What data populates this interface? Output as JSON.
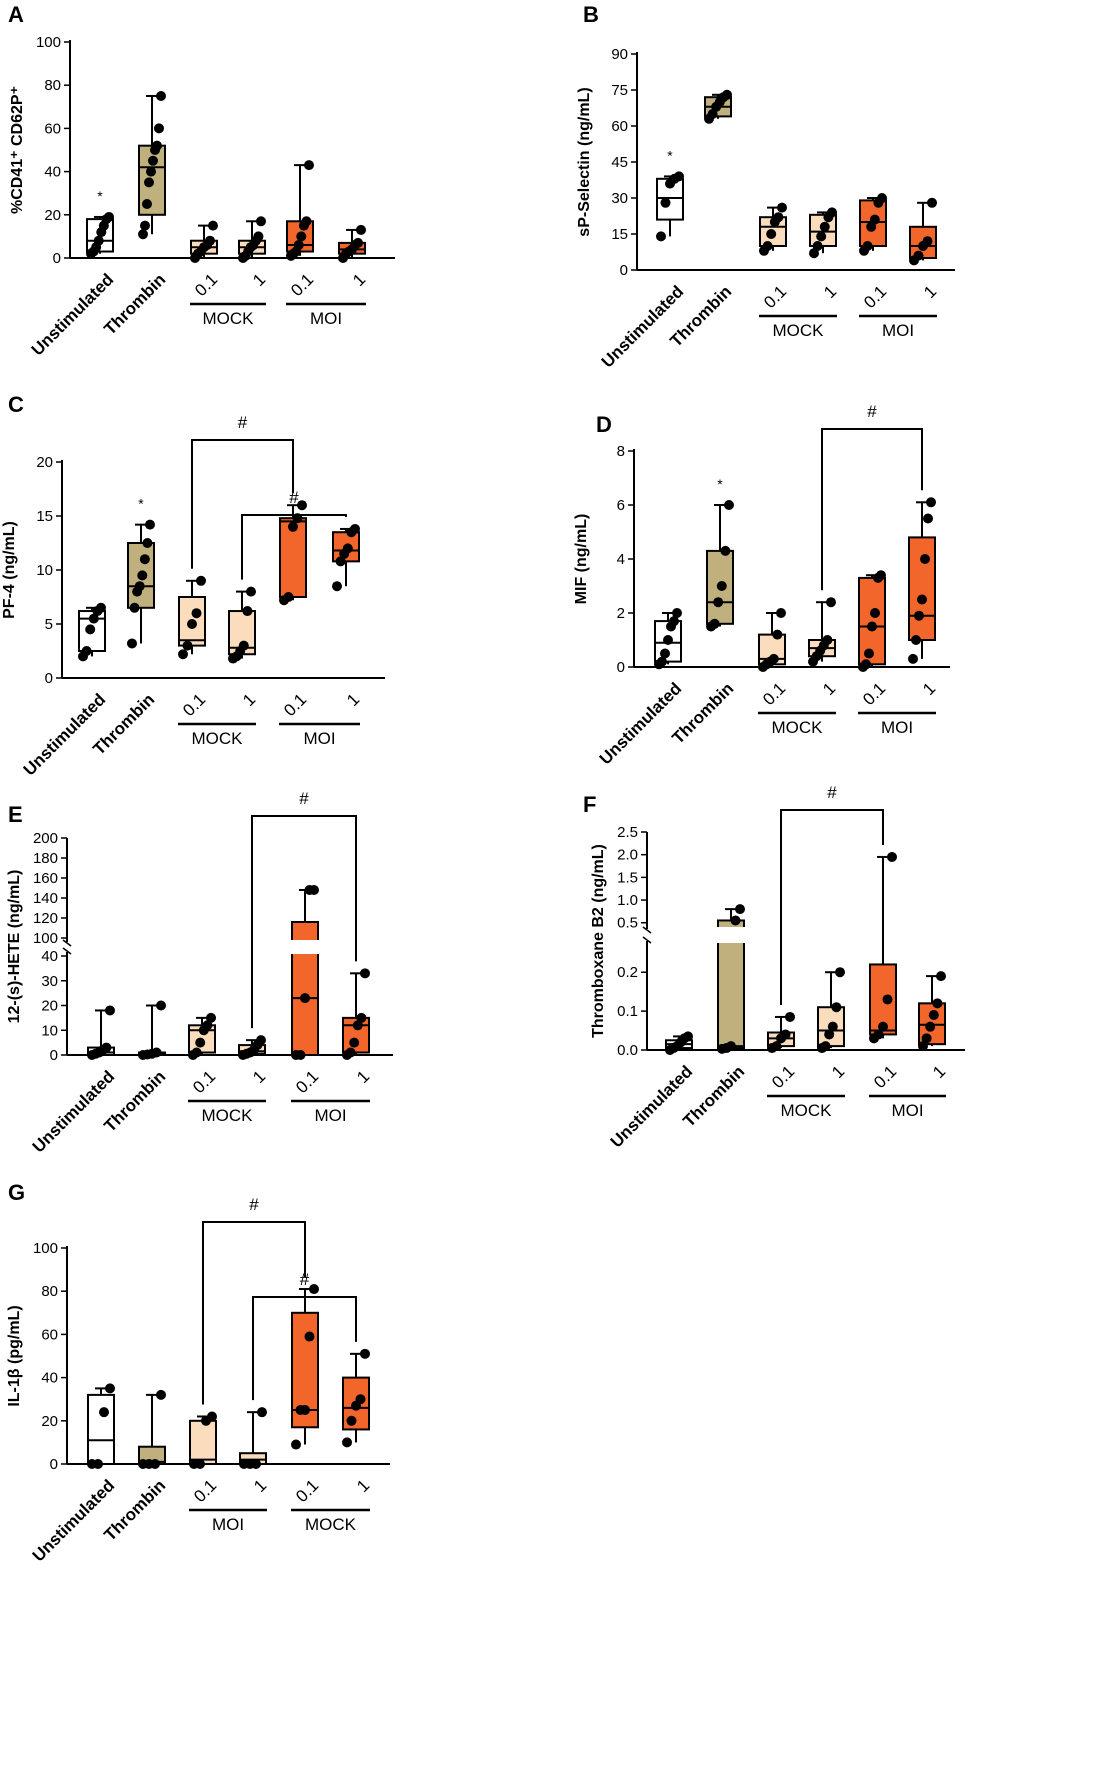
{
  "colors": {
    "unstim": "#ffffff",
    "thrombin": "#bfb07e",
    "mock": "#fbdcbc",
    "moi": "#f2652b"
  },
  "chart_data": [
    {
      "panel": "A",
      "type": "box",
      "ylabel": "%CD41⁺ CD62P⁺",
      "ylim": [
        0,
        100
      ],
      "yticks": [
        "0",
        "20",
        "40",
        "60",
        "80",
        "100"
      ],
      "categories": [
        "Unstimulated",
        "Thrombin",
        "0.1",
        "1",
        "0.1",
        "1"
      ],
      "groups": [
        "MOCK",
        "MOI"
      ],
      "boxes": [
        {
          "min": 2,
          "q1": 3,
          "med": 8,
          "q3": 18,
          "max": 19,
          "points": [
            2,
            3,
            5,
            8,
            12,
            15,
            18,
            19
          ]
        },
        {
          "min": 11,
          "q1": 20,
          "med": 42,
          "q3": 52,
          "max": 75,
          "points": [
            11,
            15,
            25,
            35,
            40,
            45,
            50,
            52,
            60,
            75
          ]
        },
        {
          "min": 0,
          "q1": 2,
          "med": 5,
          "q3": 8,
          "max": 15,
          "points": [
            0,
            2,
            3,
            5,
            6,
            8,
            15
          ]
        },
        {
          "min": 0,
          "q1": 2,
          "med": 5,
          "q3": 8,
          "max": 17,
          "points": [
            0,
            1,
            3,
            5,
            6,
            8,
            10,
            17
          ]
        },
        {
          "min": 1,
          "q1": 3,
          "med": 6,
          "q3": 17,
          "max": 43,
          "points": [
            1,
            2,
            3,
            6,
            10,
            15,
            17,
            43
          ]
        },
        {
          "min": 0,
          "q1": 2,
          "med": 4,
          "q3": 7,
          "max": 13,
          "points": [
            0,
            2,
            3,
            4,
            6,
            7,
            13
          ]
        }
      ],
      "annotations": [
        "*",
        "",
        "",
        "",
        "",
        ""
      ]
    },
    {
      "panel": "B",
      "type": "box",
      "ylabel": "sP-Selectin (ng/mL)",
      "ylim": [
        0,
        90
      ],
      "yticks": [
        "0",
        "15",
        "30",
        "45",
        "60",
        "75",
        "90"
      ],
      "categories": [
        "Unstimulated",
        "Thrombin",
        "0.1",
        "1",
        "0.1",
        "1"
      ],
      "groups": [
        "MOCK",
        "MOI"
      ],
      "boxes": [
        {
          "min": 14,
          "q1": 21,
          "med": 30,
          "q3": 38,
          "max": 39,
          "points": [
            14,
            28,
            36,
            38,
            39
          ]
        },
        {
          "min": 63,
          "q1": 64,
          "med": 68,
          "q3": 72,
          "max": 73,
          "points": [
            63,
            65,
            68,
            70,
            72,
            73
          ]
        },
        {
          "min": 8,
          "q1": 10,
          "med": 18,
          "q3": 22,
          "max": 26,
          "points": [
            8,
            10,
            15,
            20,
            22,
            26
          ]
        },
        {
          "min": 7,
          "q1": 10,
          "med": 16,
          "q3": 23,
          "max": 24,
          "points": [
            7,
            10,
            14,
            18,
            22,
            24
          ]
        },
        {
          "min": 8,
          "q1": 10,
          "med": 20,
          "q3": 29,
          "max": 30,
          "points": [
            8,
            10,
            18,
            21,
            28,
            30
          ]
        },
        {
          "min": 4,
          "q1": 5,
          "med": 10,
          "q3": 18,
          "max": 28,
          "points": [
            4,
            6,
            10,
            12,
            28
          ]
        }
      ],
      "annotations": [
        "*",
        "",
        "",
        "",
        "",
        ""
      ]
    },
    {
      "panel": "C",
      "type": "box",
      "ylabel": "PF-4 (ng/mL)",
      "ylim": [
        0,
        20
      ],
      "yticks": [
        "0",
        "5",
        "10",
        "15",
        "20"
      ],
      "categories": [
        "Unstimulated",
        "Thrombin",
        "0.1",
        "1",
        "0.1",
        "1"
      ],
      "groups": [
        "MOCK",
        "MOI"
      ],
      "boxes": [
        {
          "min": 2,
          "q1": 2.5,
          "med": 5.5,
          "q3": 6.2,
          "max": 6.5,
          "points": [
            2,
            2.5,
            4.5,
            5.5,
            6.2,
            6.5
          ]
        },
        {
          "min": 3.2,
          "q1": 6.5,
          "med": 8.5,
          "q3": 12.5,
          "max": 14.2,
          "points": [
            3.2,
            6.5,
            8,
            8.5,
            9.5,
            11,
            12.5,
            14.2
          ]
        },
        {
          "min": 2.2,
          "q1": 3,
          "med": 3.5,
          "q3": 7.5,
          "max": 9,
          "points": [
            2.2,
            3,
            5,
            6,
            9
          ]
        },
        {
          "min": 1.8,
          "q1": 2.2,
          "med": 2.8,
          "q3": 6.2,
          "max": 8,
          "points": [
            1.8,
            2,
            2.5,
            3,
            6.2,
            8
          ]
        },
        {
          "min": 7.2,
          "q1": 7.5,
          "med": 14.5,
          "q3": 14.8,
          "max": 16,
          "points": [
            7.2,
            7.5,
            14,
            14.8,
            16
          ]
        },
        {
          "min": 8.5,
          "q1": 10.8,
          "med": 11.8,
          "q3": 13.5,
          "max": 13.8,
          "points": [
            8.5,
            10.8,
            11.5,
            12,
            13.5,
            13.8
          ]
        }
      ],
      "annotations": [
        "",
        "*",
        "",
        "",
        "",
        ""
      ],
      "brackets": [
        {
          "from": 2,
          "to": 4,
          "label": "#",
          "level": 0
        },
        {
          "from": 3,
          "to": 5,
          "label": "#",
          "level": 1
        }
      ]
    },
    {
      "panel": "D",
      "type": "box",
      "ylabel": "MIF (ng/mL)",
      "ylim": [
        0,
        8
      ],
      "yticks": [
        "0",
        "2",
        "4",
        "6",
        "8"
      ],
      "categories": [
        "Unstimulated",
        "Thrombin",
        "0.1",
        "1",
        "0.1",
        "1"
      ],
      "groups": [
        "MOCK",
        "MOI"
      ],
      "boxes": [
        {
          "min": 0.1,
          "q1": 0.2,
          "med": 0.9,
          "q3": 1.7,
          "max": 2,
          "points": [
            0.1,
            0.2,
            0.5,
            1,
            1.5,
            1.7,
            2
          ]
        },
        {
          "min": 1.5,
          "q1": 1.6,
          "med": 2.4,
          "q3": 4.3,
          "max": 6,
          "points": [
            1.5,
            1.6,
            2.4,
            3,
            4.3,
            6
          ]
        },
        {
          "min": 0,
          "q1": 0.1,
          "med": 0.3,
          "q3": 1.2,
          "max": 2,
          "points": [
            0,
            0.1,
            0.2,
            0.3,
            1.2,
            2
          ]
        },
        {
          "min": 0.2,
          "q1": 0.4,
          "med": 0.7,
          "q3": 1,
          "max": 2.4,
          "points": [
            0.2,
            0.4,
            0.6,
            0.8,
            1,
            2.4
          ]
        },
        {
          "min": 0,
          "q1": 0.1,
          "med": 1.5,
          "q3": 3.3,
          "max": 3.4,
          "points": [
            0,
            0.1,
            0.5,
            1.5,
            2,
            3.3,
            3.4
          ]
        },
        {
          "min": 0.3,
          "q1": 1,
          "med": 1.9,
          "q3": 4.8,
          "max": 6.1,
          "points": [
            0.3,
            1,
            1.9,
            2.5,
            4,
            5.5,
            6.1
          ]
        }
      ],
      "annotations": [
        "",
        "*",
        "",
        "",
        "",
        ""
      ],
      "brackets": [
        {
          "from": 3,
          "to": 5,
          "label": "#",
          "level": 0
        }
      ]
    },
    {
      "panel": "E",
      "type": "box_broken_axis",
      "ylabel": "12-(s)-HETE (ng/mL)",
      "ylim": [
        0,
        200
      ],
      "axis_break": [
        40,
        100
      ],
      "yticks": [
        "0",
        "10",
        "20",
        "30",
        "40",
        "100",
        "120",
        "140",
        "160",
        "180",
        "200"
      ],
      "categories": [
        "Unstimulated",
        "Thrombin",
        "0.1",
        "1",
        "0.1",
        "1"
      ],
      "groups": [
        "MOCK",
        "MOI"
      ],
      "boxes": [
        {
          "min": 0,
          "q1": 0,
          "med": 1,
          "q3": 3,
          "max": 18,
          "points": [
            0,
            0.5,
            1,
            2,
            3,
            18
          ]
        },
        {
          "min": 0,
          "q1": 0,
          "med": 0.5,
          "q3": 1,
          "max": 20,
          "points": [
            0,
            0.2,
            0.5,
            1,
            20
          ]
        },
        {
          "min": 0,
          "q1": 1,
          "med": 10,
          "q3": 12,
          "max": 15,
          "points": [
            0,
            1,
            5,
            10,
            12,
            15
          ]
        },
        {
          "min": 0,
          "q1": 0.5,
          "med": 1.5,
          "q3": 4,
          "max": 6,
          "points": [
            0,
            0.5,
            1,
            2,
            4,
            6
          ]
        },
        {
          "min": 0,
          "q1": 0,
          "med": 23,
          "q3": 116,
          "max": 148,
          "points": [
            0,
            0,
            23,
            148,
            148
          ]
        },
        {
          "min": 0,
          "q1": 1,
          "med": 12,
          "q3": 15,
          "max": 33,
          "points": [
            0,
            1,
            5,
            12,
            15,
            33
          ]
        }
      ],
      "annotations": [
        "",
        "",
        "",
        "",
        "",
        ""
      ],
      "brackets": [
        {
          "from": 3,
          "to": 5,
          "label": "#",
          "level": 0
        }
      ]
    },
    {
      "panel": "F",
      "type": "box_broken_axis",
      "ylabel": "Thromboxane B2 (ng/mL)",
      "ylim": [
        0,
        2.5
      ],
      "axis_break": [
        0.27,
        0.45
      ],
      "yticks": [
        "0.0",
        "0.1",
        "0.2",
        "0.5",
        "1.0",
        "1.5",
        "2.0",
        "2.5"
      ],
      "categories": [
        "Unstimulated",
        "Thrombin",
        "0.1",
        "1",
        "0.1",
        "1"
      ],
      "groups": [
        "MOCK",
        "MOI"
      ],
      "boxes": [
        {
          "min": 0,
          "q1": 0.005,
          "med": 0.015,
          "q3": 0.025,
          "max": 0.035,
          "points": [
            0,
            0.005,
            0.01,
            0.02,
            0.03,
            0.035
          ]
        },
        {
          "min": 0.003,
          "q1": 0.005,
          "med": 0.01,
          "q3": 0.55,
          "max": 0.8,
          "points": [
            0.003,
            0.005,
            0.01,
            0.55,
            0.8
          ]
        },
        {
          "min": 0.005,
          "q1": 0.01,
          "med": 0.03,
          "q3": 0.045,
          "max": 0.085,
          "points": [
            0.005,
            0.01,
            0.03,
            0.04,
            0.085
          ]
        },
        {
          "min": 0.005,
          "q1": 0.01,
          "med": 0.05,
          "q3": 0.11,
          "max": 0.2,
          "points": [
            0.005,
            0.01,
            0.04,
            0.06,
            0.11,
            0.2
          ]
        },
        {
          "min": 0.03,
          "q1": 0.04,
          "med": 0.05,
          "q3": 0.22,
          "max": 1.95,
          "points": [
            0.03,
            0.04,
            0.06,
            0.13,
            1.95
          ]
        },
        {
          "min": 0.01,
          "q1": 0.015,
          "med": 0.065,
          "q3": 0.12,
          "max": 0.19,
          "points": [
            0.01,
            0.03,
            0.06,
            0.09,
            0.12,
            0.19
          ]
        }
      ],
      "annotations": [
        "",
        "",
        "",
        "",
        "",
        ""
      ],
      "brackets": [
        {
          "from": 2,
          "to": 4,
          "label": "#",
          "level": 0
        }
      ]
    },
    {
      "panel": "G",
      "type": "box",
      "ylabel": "IL-1β (pg/mL)",
      "ylim": [
        0,
        100
      ],
      "yticks": [
        "0",
        "20",
        "40",
        "60",
        "80",
        "100"
      ],
      "categories": [
        "Unstimulated",
        "Thrombin",
        "0.1",
        "1",
        "0.1",
        "1"
      ],
      "groups": [
        "MOI",
        "MOCK"
      ],
      "boxes": [
        {
          "min": 0,
          "q1": 0,
          "med": 11,
          "q3": 32,
          "max": 35,
          "points": [
            0,
            0,
            24,
            35
          ]
        },
        {
          "min": 0,
          "q1": 0,
          "med": 1,
          "q3": 8,
          "max": 32,
          "points": [
            0,
            0,
            0,
            32
          ]
        },
        {
          "min": 0,
          "q1": 0,
          "med": 2,
          "q3": 20,
          "max": 22,
          "points": [
            0,
            0,
            20,
            22
          ]
        },
        {
          "min": 0,
          "q1": 0,
          "med": 2,
          "q3": 5,
          "max": 24,
          "points": [
            0,
            0,
            0,
            24
          ]
        },
        {
          "min": 9,
          "q1": 17,
          "med": 25,
          "q3": 70,
          "max": 81,
          "points": [
            9,
            25,
            25,
            59,
            81
          ]
        },
        {
          "min": 10,
          "q1": 16,
          "med": 26,
          "q3": 40,
          "max": 51,
          "points": [
            10,
            20,
            27,
            30,
            51
          ]
        }
      ],
      "annotations": [
        "",
        "",
        "",
        "",
        "",
        ""
      ],
      "brackets": [
        {
          "from": 2,
          "to": 4,
          "label": "#",
          "level": 0
        },
        {
          "from": 3,
          "to": 5,
          "label": "#",
          "level": 1
        }
      ]
    }
  ]
}
